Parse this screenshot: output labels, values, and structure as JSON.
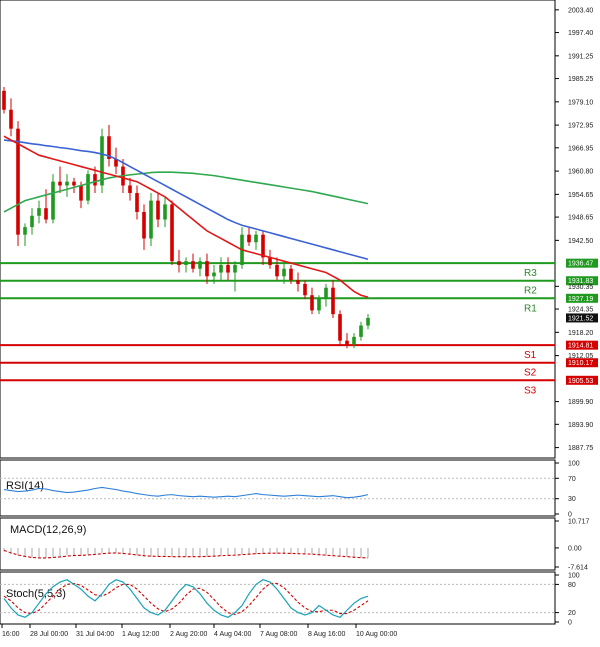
{
  "chart_data": {
    "type": "candlestick",
    "main": {
      "y_ticks": [
        "2003.40",
        "1997.40",
        "1991.25",
        "1985.25",
        "1979.10",
        "1972.95",
        "1966.95",
        "1960.80",
        "1954.65",
        "1948.65",
        "1942.50",
        "1930.35",
        "1924.35",
        "1918.20",
        "1912.05",
        "1899.90",
        "1893.90",
        "1887.75"
      ],
      "ylim": [
        1885,
        2006
      ],
      "levels": [
        {
          "name": "R3",
          "label": "R3",
          "value": 1936.47,
          "tag": "1936.47",
          "color": "#1f9a1f"
        },
        {
          "name": "R2",
          "label": "R2",
          "value": 1931.83,
          "tag": "1931.83",
          "color": "#1f9a1f"
        },
        {
          "name": "R1",
          "label": "R1",
          "value": 1927.19,
          "tag": "1927.19",
          "color": "#1f9a1f"
        },
        {
          "name": "S1",
          "label": "S1",
          "value": 1914.81,
          "tag": "1914.81",
          "color": "#d40000"
        },
        {
          "name": "S2",
          "label": "S2",
          "value": 1910.17,
          "tag": "1910.17",
          "color": "#d40000"
        },
        {
          "name": "S3",
          "label": "S3",
          "value": 1905.53,
          "tag": "1905.53",
          "color": "#d40000"
        }
      ],
      "current_price": "1921.52",
      "candles": [
        [
          1982,
          1983,
          1976,
          1977
        ],
        [
          1977,
          1980,
          1970,
          1972
        ],
        [
          1972,
          1974,
          1941,
          1944
        ],
        [
          1944,
          1947,
          1941,
          1946
        ],
        [
          1946,
          1951,
          1944,
          1949
        ],
        [
          1949,
          1953,
          1947,
          1951
        ],
        [
          1951,
          1956,
          1947,
          1948
        ],
        [
          1948,
          1960,
          1947,
          1958
        ],
        [
          1958,
          1962,
          1955,
          1957
        ],
        [
          1957,
          1960,
          1954,
          1958
        ],
        [
          1958,
          1959,
          1955,
          1957
        ],
        [
          1957,
          1958,
          1951,
          1953
        ],
        [
          1953,
          1961,
          1952,
          1960
        ],
        [
          1960,
          1962,
          1955,
          1957
        ],
        [
          1957,
          1972,
          1955,
          1970
        ],
        [
          1970,
          1973,
          1962,
          1964
        ],
        [
          1964,
          1967,
          1960,
          1962
        ],
        [
          1962,
          1964,
          1955,
          1957
        ],
        [
          1957,
          1959,
          1953,
          1955
        ],
        [
          1955,
          1957,
          1948,
          1950
        ],
        [
          1950,
          1952,
          1940,
          1943
        ],
        [
          1943,
          1955,
          1941,
          1953
        ],
        [
          1953,
          1955,
          1946,
          1948
        ],
        [
          1948,
          1954,
          1946,
          1952
        ],
        [
          1952,
          1953,
          1936,
          1937
        ],
        [
          1937,
          1940,
          1934,
          1936
        ],
        [
          1936,
          1938,
          1934,
          1937
        ],
        [
          1937,
          1939,
          1934,
          1935
        ],
        [
          1935,
          1938,
          1933,
          1937
        ],
        [
          1937,
          1939,
          1931,
          1933
        ],
        [
          1933,
          1936,
          1931,
          1934
        ],
        [
          1934,
          1938,
          1932,
          1936
        ],
        [
          1936,
          1938,
          1932,
          1934
        ],
        [
          1934,
          1937,
          1929,
          1936
        ],
        [
          1936,
          1946,
          1935,
          1944
        ],
        [
          1944,
          1946,
          1941,
          1942
        ],
        [
          1942,
          1945,
          1940,
          1944
        ],
        [
          1944,
          1945,
          1936,
          1938
        ],
        [
          1938,
          1940,
          1935,
          1936
        ],
        [
          1936,
          1938,
          1932,
          1933
        ],
        [
          1933,
          1937,
          1931,
          1935
        ],
        [
          1935,
          1936,
          1931,
          1932
        ],
        [
          1932,
          1934,
          1929,
          1931
        ],
        [
          1931,
          1932,
          1927,
          1928
        ],
        [
          1928,
          1930,
          1923,
          1924
        ],
        [
          1924,
          1928,
          1923,
          1927
        ],
        [
          1927,
          1931,
          1925,
          1930
        ],
        [
          1930,
          1932,
          1922,
          1923
        ],
        [
          1923,
          1924,
          1915,
          1916
        ],
        [
          1916,
          1918,
          1914,
          1915
        ],
        [
          1915,
          1918,
          1914,
          1917
        ],
        [
          1917,
          1921,
          1916,
          1920
        ],
        [
          1920,
          1923,
          1919,
          1922
        ]
      ],
      "ma_red": [
        1970,
        1969,
        1968,
        1967,
        1966,
        1965,
        1964.5,
        1964,
        1963.5,
        1963,
        1962.5,
        1962,
        1961.5,
        1961,
        1960.5,
        1960,
        1959.5,
        1959,
        1958.5,
        1958,
        1957,
        1956,
        1955,
        1954,
        1952.5,
        1951,
        1949.5,
        1948,
        1946.5,
        1945,
        1944,
        1943,
        1942,
        1941,
        1940,
        1939.5,
        1939,
        1938.5,
        1938,
        1937.5,
        1937,
        1936.5,
        1936,
        1935.5,
        1935,
        1934.5,
        1934,
        1933,
        1932,
        1930.5,
        1929,
        1928,
        1927.5
      ],
      "ma_blue": [
        1969,
        1968.8,
        1968.6,
        1968.3,
        1968,
        1967.8,
        1967.5,
        1967.3,
        1967,
        1966.8,
        1966.5,
        1966.2,
        1966,
        1965.7,
        1965.3,
        1964.8,
        1964,
        1963,
        1962,
        1961,
        1960,
        1959,
        1958,
        1957,
        1956,
        1955,
        1954,
        1953,
        1952,
        1951,
        1950,
        1949,
        1948,
        1947.2,
        1946.5,
        1946,
        1945.5,
        1945,
        1944.5,
        1944,
        1943.5,
        1943,
        1942.5,
        1942,
        1941.5,
        1941,
        1940.5,
        1940,
        1939.5,
        1939,
        1938.5,
        1938,
        1937.5
      ],
      "ma_green": [
        1950,
        1951,
        1952,
        1953,
        1953.5,
        1954,
        1954.5,
        1955,
        1955.5,
        1956,
        1956.5,
        1957,
        1957.5,
        1958,
        1958.5,
        1959,
        1959.3,
        1959.6,
        1959.8,
        1960,
        1960.2,
        1960.4,
        1960.5,
        1960.5,
        1960.5,
        1960.4,
        1960.3,
        1960.2,
        1960,
        1959.8,
        1959.6,
        1959.3,
        1959,
        1958.7,
        1958.4,
        1958.1,
        1957.8,
        1957.5,
        1957.2,
        1956.9,
        1956.6,
        1956.3,
        1956,
        1955.7,
        1955.4,
        1955,
        1954.6,
        1954.2,
        1953.8,
        1953.4,
        1953,
        1952.6,
        1952.2
      ]
    },
    "x_labels": [
      "16:00",
      "28 Jul 00:00",
      "31 Jul 04:00",
      "1 Aug 12:00",
      "2 Aug 20:00",
      "4 Aug 04:00",
      "7 Aug 08:00",
      "8 Aug 16:00",
      "10 Aug 00:00"
    ],
    "rsi": {
      "title": "RSI(14)",
      "y_ticks": [
        "100",
        "70",
        "30",
        "0"
      ],
      "ylim": [
        0,
        100
      ],
      "values": [
        48,
        46,
        44,
        45,
        47,
        50,
        49,
        46,
        44,
        42,
        43,
        45,
        47,
        50,
        52,
        50,
        48,
        45,
        43,
        40,
        38,
        36,
        35,
        37,
        38,
        36,
        35,
        34,
        35,
        34,
        33,
        34,
        35,
        34,
        36,
        38,
        40,
        38,
        37,
        36,
        35,
        36,
        37,
        36,
        35,
        34,
        35,
        36,
        34,
        32,
        33,
        35,
        38
      ]
    },
    "macd": {
      "title": "MACD(12,26,9)",
      "y_ticks": [
        "10.717",
        "0.00",
        "-7.614"
      ],
      "ylim": [
        -7.614,
        10.717
      ],
      "histogram": [
        -1.5,
        -2.5,
        -3.0,
        -3.5,
        -4.0,
        -4.0,
        -4.0,
        -3.5,
        -3.5,
        -3.0,
        -3.0,
        -3.0,
        -2.5,
        -2.5,
        -2.0,
        -2.0,
        -2.0,
        -2.5,
        -2.5,
        -3.0,
        -3.5,
        -3.5,
        -3.5,
        -3.0,
        -3.5,
        -3.5,
        -3.5,
        -3.5,
        -3.5,
        -3.5,
        -3.5,
        -3.0,
        -3.0,
        -3.0,
        -2.5,
        -2.5,
        -2.5,
        -2.5,
        -2.5,
        -2.5,
        -2.5,
        -2.5,
        -2.5,
        -2.5,
        -2.5,
        -3.0,
        -3.0,
        -3.0,
        -3.5,
        -3.5,
        -4.0,
        -4.0,
        -4.0
      ],
      "signal": [
        -1.0,
        -2.0,
        -2.8,
        -3.4,
        -3.8,
        -4.0,
        -4.0,
        -3.8,
        -3.6,
        -3.3,
        -3.0,
        -3.0,
        -2.8,
        -2.6,
        -2.3,
        -2.1,
        -2.0,
        -2.2,
        -2.5,
        -2.8,
        -3.1,
        -3.3,
        -3.4,
        -3.4,
        -3.5,
        -3.5,
        -3.5,
        -3.5,
        -3.5,
        -3.4,
        -3.3,
        -3.1,
        -3.0,
        -2.9,
        -2.7,
        -2.5,
        -2.3,
        -2.2,
        -2.1,
        -2.1,
        -2.1,
        -2.2,
        -2.3,
        -2.4,
        -2.5,
        -2.7,
        -2.9,
        -3.1,
        -3.3,
        -3.5,
        -3.7,
        -3.9,
        -4.0
      ]
    },
    "stoch": {
      "title": "Stoch(5,5,3)",
      "y_ticks": [
        "100",
        "80",
        "20",
        "0"
      ],
      "ylim": [
        0,
        100
      ],
      "k": [
        50,
        30,
        15,
        10,
        20,
        40,
        60,
        75,
        85,
        90,
        80,
        70,
        55,
        45,
        60,
        80,
        90,
        85,
        70,
        50,
        30,
        20,
        15,
        25,
        45,
        65,
        80,
        75,
        60,
        40,
        25,
        15,
        10,
        20,
        35,
        60,
        80,
        90,
        85,
        70,
        50,
        30,
        20,
        15,
        20,
        35,
        25,
        15,
        10,
        25,
        40,
        50,
        55
      ],
      "d": [
        55,
        45,
        30,
        20,
        18,
        25,
        40,
        55,
        70,
        80,
        82,
        78,
        68,
        58,
        55,
        62,
        73,
        80,
        80,
        70,
        55,
        40,
        28,
        22,
        28,
        40,
        57,
        70,
        72,
        63,
        48,
        32,
        20,
        16,
        22,
        35,
        52,
        70,
        82,
        82,
        73,
        58,
        42,
        30,
        22,
        22,
        25,
        25,
        18,
        18,
        25,
        35,
        45
      ]
    }
  }
}
